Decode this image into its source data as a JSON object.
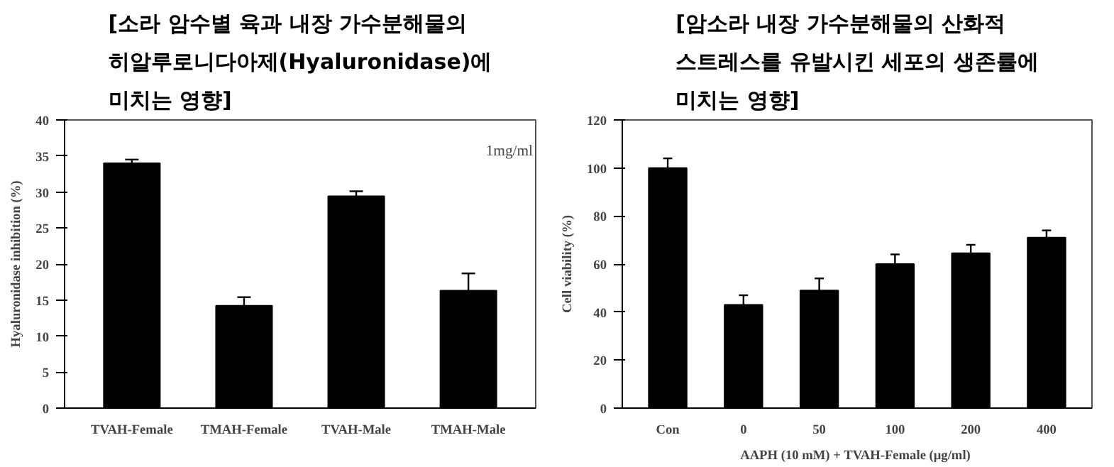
{
  "chart_data": [
    {
      "type": "bar",
      "title": "[소라 암수별 육과 내장 가수분해물의\n히알루로니다아제(Hyaluronidase)에\n미치는 영향]",
      "ylabel": "Hyaluronidase inhibition (%)",
      "categories": [
        "TVAH-Female",
        "TMAH-Female",
        "TVAH-Male",
        "TMAH-Male"
      ],
      "values": [
        34,
        14.2,
        29.4,
        16.3
      ],
      "errors": [
        [
          34,
          34.5
        ],
        [
          14.2,
          15.4
        ],
        [
          29.4,
          30.1
        ],
        [
          16.3,
          18.7
        ]
      ],
      "color": "#000000",
      "ylim": [
        0,
        40
      ],
      "yticks": [
        0,
        5,
        10,
        15,
        20,
        25,
        30,
        35,
        40
      ],
      "annotations": [
        "1mg/ml"
      ],
      "grid": false
    },
    {
      "type": "bar",
      "title": "[암소라 내장 가수분해물의 산화적\n스트레스를 유발시킨 세포의 생존률에\n미치는 영향]",
      "ylabel": "Cell viability (%)",
      "xlabel": "AAPH (10 mM) + TVAH-Female  (μg/ml)",
      "categories": [
        "Con",
        "0",
        "50",
        "100",
        "200",
        "400"
      ],
      "values": [
        100,
        43,
        49,
        60,
        64.5,
        71
      ],
      "errors": [
        [
          100,
          104
        ],
        [
          43,
          47
        ],
        [
          49,
          54
        ],
        [
          60,
          64
        ],
        [
          64.5,
          68
        ],
        [
          71,
          74
        ]
      ],
      "color": "#000000",
      "ylim": [
        0,
        120
      ],
      "yticks": [
        0,
        20,
        40,
        60,
        80,
        100,
        120
      ],
      "grid": false
    }
  ]
}
